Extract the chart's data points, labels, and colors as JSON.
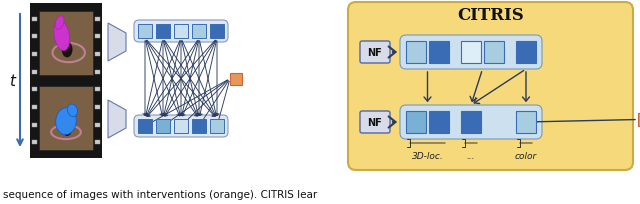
{
  "fig_width": 6.4,
  "fig_height": 2.05,
  "dpi": 100,
  "bg_color": "#ffffff",
  "yellow_bg": "#f5d97a",
  "blue_dark": "#3a6cb5",
  "blue_mid": "#7ab0d4",
  "blue_light": "#a8cce0",
  "blue_pale": "#cce0f0",
  "blue_very_pale": "#ddeef8",
  "gray_box": "#c8ccd8",
  "gray_light": "#d8dce8",
  "orange_box": "#e8965a",
  "film_black": "#151515",
  "film_bg_color": "#7a6045",
  "arrow_color": "#2a3a60",
  "text_color": "#111111",
  "caption_text": "sequence of images with interventions (orange). CITRIS lear",
  "title_text": "CITRIS",
  "label_3dloc": "3D-loc.",
  "label_dots": "...",
  "label_color": "color",
  "label_t": "t"
}
